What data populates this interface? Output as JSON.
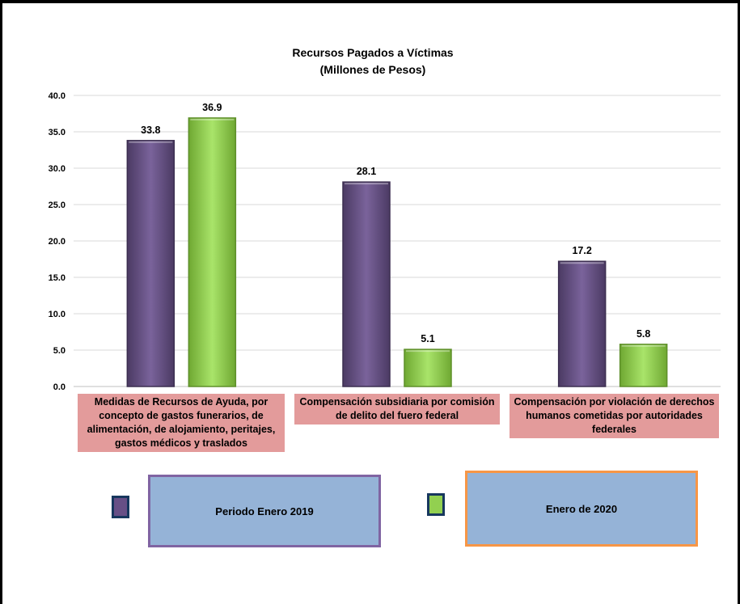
{
  "chart_data": {
    "type": "bar",
    "title": "Recursos Pagados a Víctimas",
    "subtitle": "(Millones de Pesos)",
    "ylim": [
      0,
      40
    ],
    "yticks": [
      "0.0",
      "5.0",
      "10.0",
      "15.0",
      "20.0",
      "25.0",
      "30.0",
      "35.0",
      "40.0"
    ],
    "grid": true,
    "categories": [
      "Medidas de Recursos de Ayuda, por concepto de gastos funerarios, de alimentación, de alojamiento, peritajes, gastos médicos y traslados",
      "Compensación subsidiaria por comisión de delito del fuero federal",
      "Compensación por violación de derechos humanos cometidas por autoridades federales"
    ],
    "series": [
      {
        "name": "Periodo Enero 2019",
        "values": [
          33.8,
          28.1,
          17.2
        ],
        "labels": [
          "33.8",
          "28.1",
          "17.2"
        ],
        "color": "#674f86"
      },
      {
        "name": "Enero de 2020",
        "values": [
          36.9,
          5.1,
          5.8
        ],
        "labels": [
          "36.9",
          "5.1",
          "5.8"
        ],
        "color": "#92d050"
      }
    ],
    "legend_placement": "bottom"
  },
  "colors": {
    "category_label_bg": "#e39b9b",
    "legend_box_bg": "#95b3d7",
    "legend_border_2019": "#8064a2",
    "legend_border_2020": "#f79646"
  }
}
